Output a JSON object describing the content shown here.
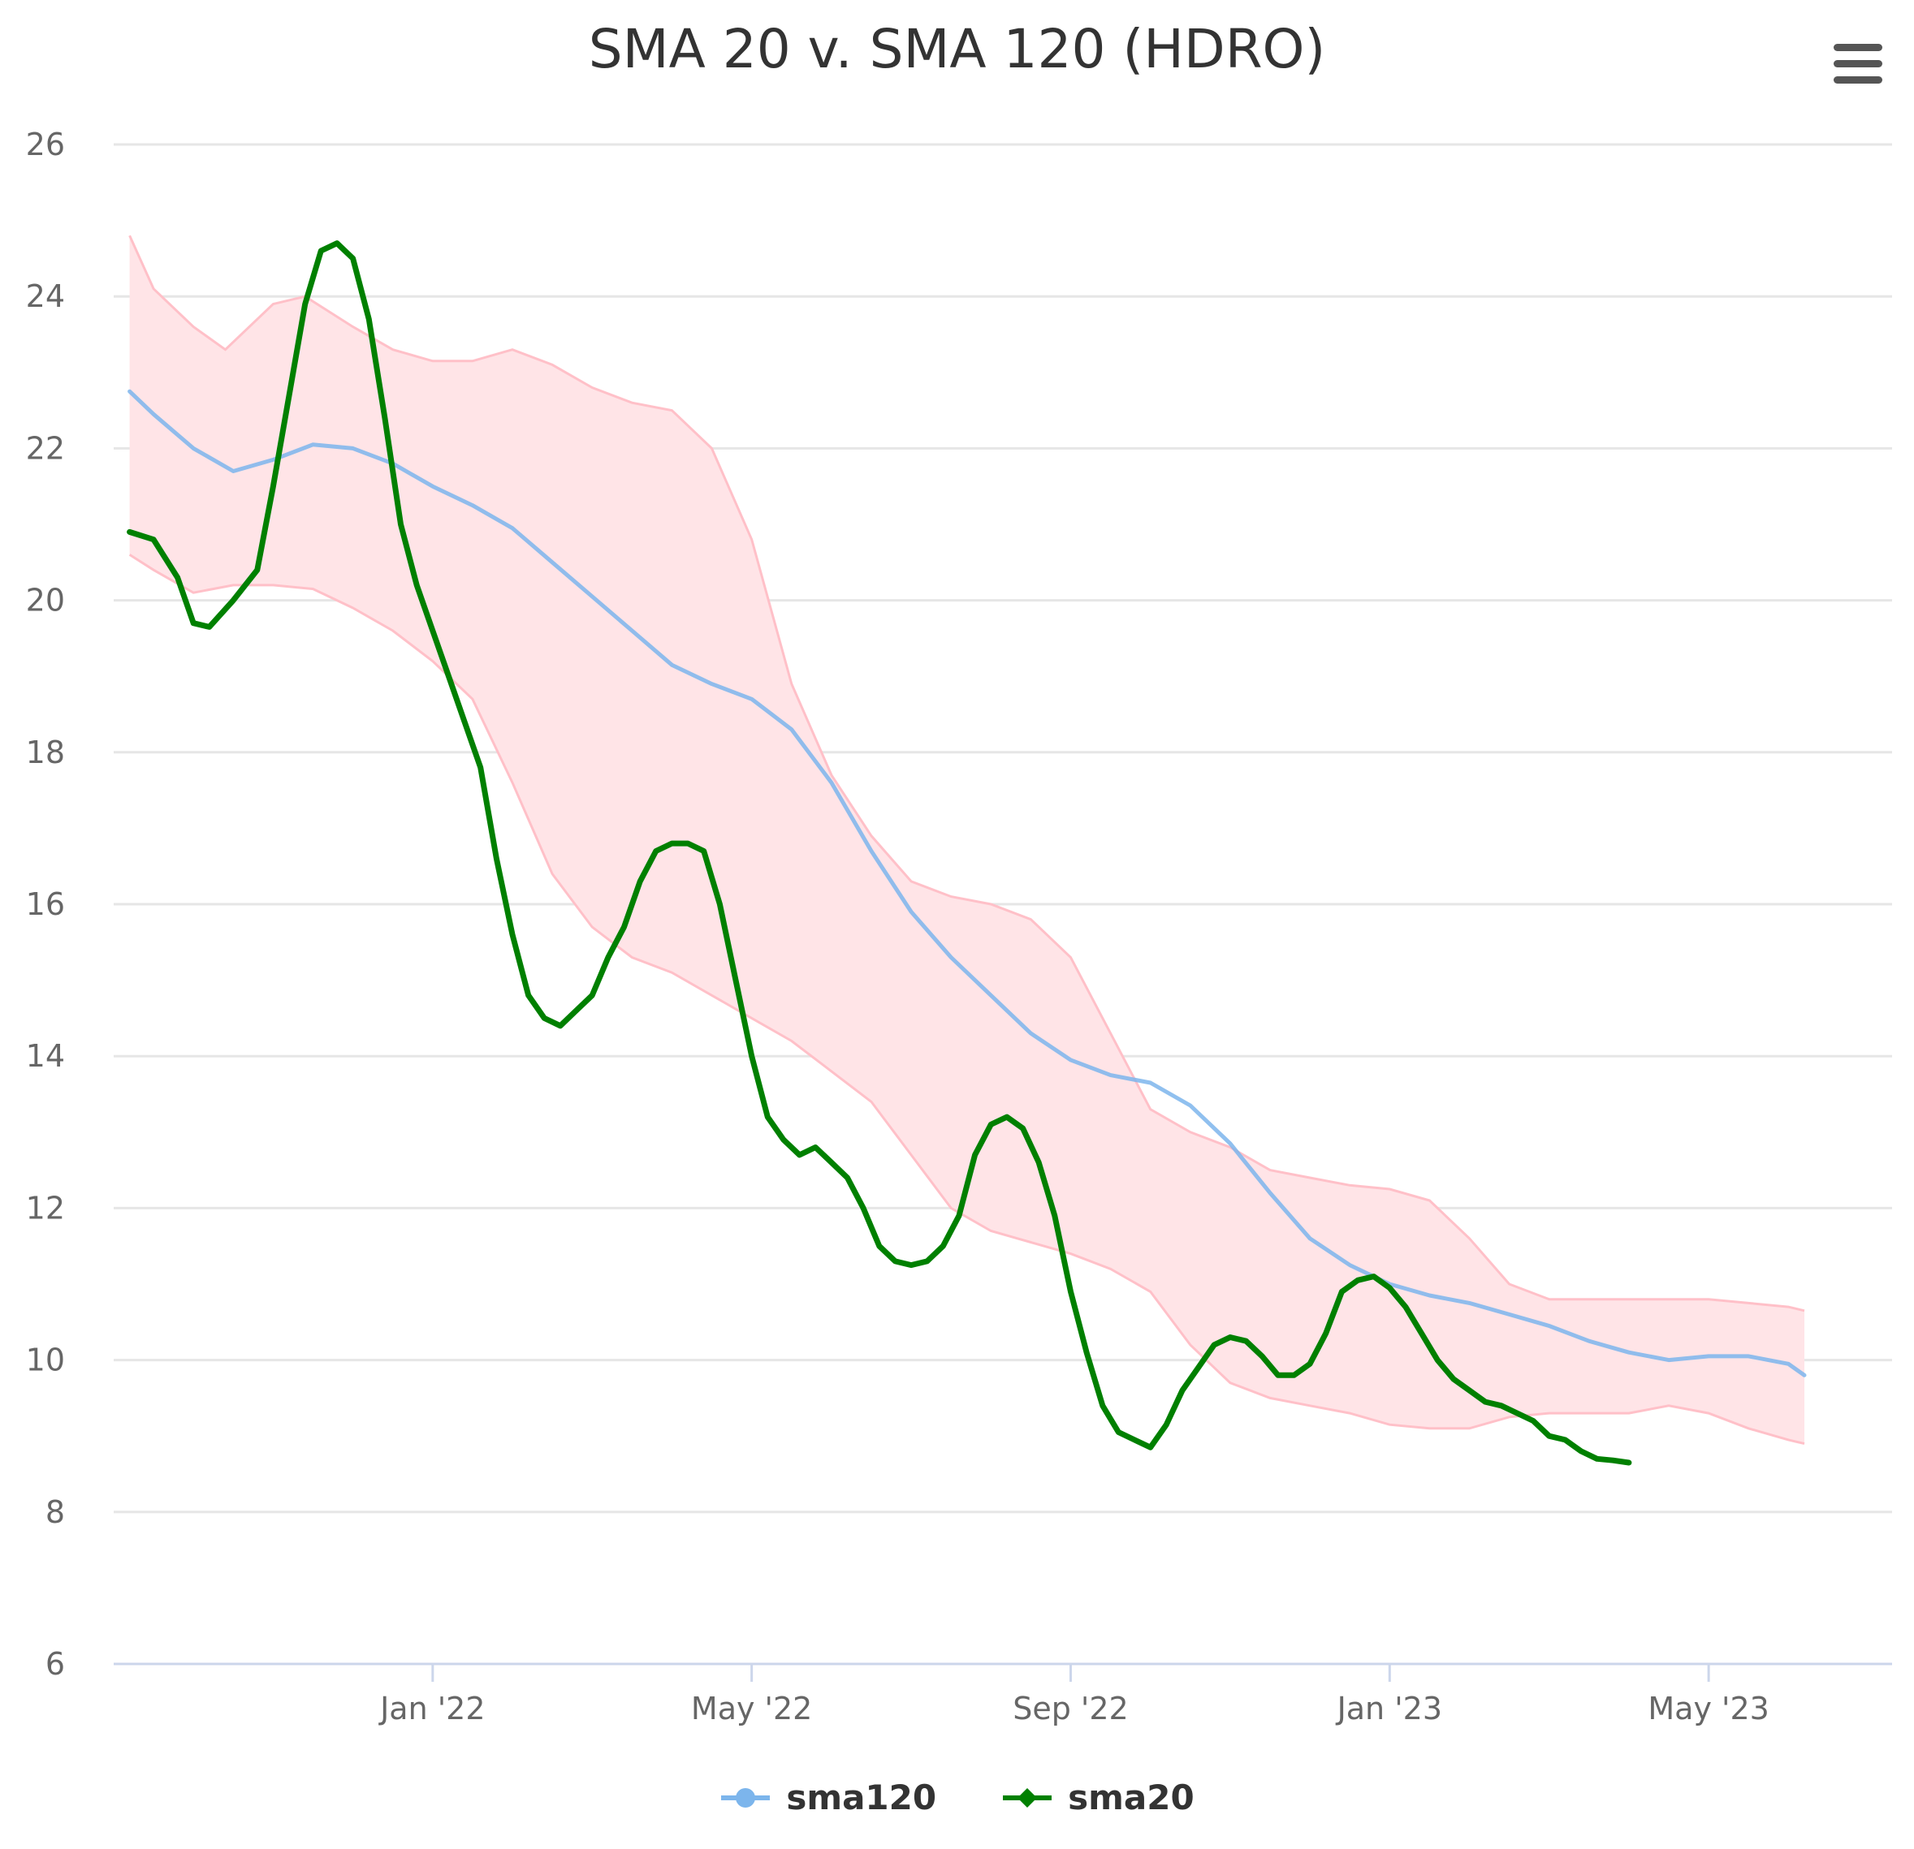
{
  "title": "SMA 20 v. SMA 120 (HDRO)",
  "menu_icon": "hamburger-menu-icon",
  "colors": {
    "sma120": "#7cb5ec",
    "sma20": "#008000",
    "band_fill": "#ffe4e7",
    "band_line": "#ffc0c8",
    "grid": "#e6e6e6",
    "axis": "#ccd6eb"
  },
  "legend": [
    {
      "key": "sma120",
      "label": "sma120",
      "color": "#7cb5ec"
    },
    {
      "key": "sma20",
      "label": "sma20",
      "color": "#008000"
    }
  ],
  "chart_data": {
    "type": "line",
    "title": "SMA 20 v. SMA 120 (HDRO)",
    "xlabel": "",
    "ylabel": "",
    "x_unit": "months since Jan 2022 (approx.)",
    "xlim": [
      -5.0,
      17.3
    ],
    "ylim": [
      6,
      26
    ],
    "yticks": [
      6,
      8,
      10,
      12,
      14,
      16,
      18,
      20,
      22,
      24,
      26
    ],
    "xticks": [
      {
        "x": -1.0,
        "label": "Jan '22"
      },
      {
        "x": 3.0,
        "label": "May '22"
      },
      {
        "x": 7.0,
        "label": "Sep '22"
      },
      {
        "x": 11.0,
        "label": "Jan '23"
      },
      {
        "x": 15.0,
        "label": "May '23"
      }
    ],
    "grid": true,
    "legend_position": "bottom-center",
    "band": {
      "name": "sma120 envelope",
      "upper": [
        [
          -4.8,
          24.8
        ],
        [
          -4.5,
          24.1
        ],
        [
          -4.0,
          23.6
        ],
        [
          -3.6,
          23.3
        ],
        [
          -3.0,
          23.9
        ],
        [
          -2.6,
          24.0
        ],
        [
          -2.0,
          23.6
        ],
        [
          -1.5,
          23.3
        ],
        [
          -1.0,
          23.15
        ],
        [
          -0.5,
          23.15
        ],
        [
          0.0,
          23.3
        ],
        [
          0.5,
          23.1
        ],
        [
          1.0,
          22.8
        ],
        [
          1.5,
          22.6
        ],
        [
          2.0,
          22.5
        ],
        [
          2.5,
          22.0
        ],
        [
          3.0,
          20.8
        ],
        [
          3.5,
          18.9
        ],
        [
          4.0,
          17.7
        ],
        [
          4.5,
          16.9
        ],
        [
          5.0,
          16.3
        ],
        [
          5.5,
          16.1
        ],
        [
          6.0,
          16.0
        ],
        [
          6.5,
          15.8
        ],
        [
          7.0,
          15.3
        ],
        [
          7.5,
          14.3
        ],
        [
          8.0,
          13.3
        ],
        [
          8.5,
          13.0
        ],
        [
          9.0,
          12.8
        ],
        [
          9.5,
          12.5
        ],
        [
          10.0,
          12.4
        ],
        [
          10.5,
          12.3
        ],
        [
          11.0,
          12.25
        ],
        [
          11.5,
          12.1
        ],
        [
          12.0,
          11.6
        ],
        [
          12.5,
          11.0
        ],
        [
          13.0,
          10.8
        ],
        [
          13.5,
          10.8
        ],
        [
          14.0,
          10.8
        ],
        [
          14.5,
          10.8
        ],
        [
          15.0,
          10.8
        ],
        [
          15.5,
          10.75
        ],
        [
          16.0,
          10.7
        ],
        [
          16.2,
          10.65
        ]
      ],
      "lower": [
        [
          -4.8,
          20.6
        ],
        [
          -4.5,
          20.4
        ],
        [
          -4.0,
          20.1
        ],
        [
          -3.5,
          20.2
        ],
        [
          -3.0,
          20.2
        ],
        [
          -2.5,
          20.15
        ],
        [
          -2.0,
          19.9
        ],
        [
          -1.5,
          19.6
        ],
        [
          -1.0,
          19.2
        ],
        [
          -0.5,
          18.7
        ],
        [
          0.0,
          17.6
        ],
        [
          0.5,
          16.4
        ],
        [
          1.0,
          15.7
        ],
        [
          1.5,
          15.3
        ],
        [
          2.0,
          15.1
        ],
        [
          2.5,
          14.8
        ],
        [
          3.0,
          14.5
        ],
        [
          3.5,
          14.2
        ],
        [
          4.0,
          13.8
        ],
        [
          4.5,
          13.4
        ],
        [
          5.0,
          12.7
        ],
        [
          5.5,
          12.0
        ],
        [
          6.0,
          11.7
        ],
        [
          6.5,
          11.55
        ],
        [
          7.0,
          11.4
        ],
        [
          7.5,
          11.2
        ],
        [
          8.0,
          10.9
        ],
        [
          8.5,
          10.2
        ],
        [
          9.0,
          9.7
        ],
        [
          9.5,
          9.5
        ],
        [
          10.0,
          9.4
        ],
        [
          10.5,
          9.3
        ],
        [
          11.0,
          9.15
        ],
        [
          11.5,
          9.1
        ],
        [
          12.0,
          9.1
        ],
        [
          12.5,
          9.25
        ],
        [
          13.0,
          9.3
        ],
        [
          13.5,
          9.3
        ],
        [
          14.0,
          9.3
        ],
        [
          14.5,
          9.4
        ],
        [
          15.0,
          9.3
        ],
        [
          15.5,
          9.1
        ],
        [
          16.0,
          8.95
        ],
        [
          16.2,
          8.9
        ]
      ]
    },
    "series": [
      {
        "name": "sma120",
        "values": [
          [
            -4.8,
            22.75
          ],
          [
            -4.5,
            22.45
          ],
          [
            -4.0,
            22.0
          ],
          [
            -3.5,
            21.7
          ],
          [
            -3.0,
            21.85
          ],
          [
            -2.5,
            22.05
          ],
          [
            -2.0,
            22.0
          ],
          [
            -1.5,
            21.8
          ],
          [
            -1.0,
            21.5
          ],
          [
            -0.5,
            21.25
          ],
          [
            0.0,
            20.95
          ],
          [
            0.5,
            20.5
          ],
          [
            1.0,
            20.05
          ],
          [
            1.5,
            19.6
          ],
          [
            2.0,
            19.15
          ],
          [
            2.5,
            18.9
          ],
          [
            3.0,
            18.7
          ],
          [
            3.5,
            18.3
          ],
          [
            4.0,
            17.6
          ],
          [
            4.5,
            16.7
          ],
          [
            5.0,
            15.9
          ],
          [
            5.5,
            15.3
          ],
          [
            6.0,
            14.8
          ],
          [
            6.5,
            14.3
          ],
          [
            7.0,
            13.95
          ],
          [
            7.5,
            13.75
          ],
          [
            8.0,
            13.65
          ],
          [
            8.5,
            13.35
          ],
          [
            9.0,
            12.85
          ],
          [
            9.5,
            12.2
          ],
          [
            10.0,
            11.6
          ],
          [
            10.5,
            11.25
          ],
          [
            11.0,
            11.0
          ],
          [
            11.5,
            10.85
          ],
          [
            12.0,
            10.75
          ],
          [
            12.5,
            10.6
          ],
          [
            13.0,
            10.45
          ],
          [
            13.5,
            10.25
          ],
          [
            14.0,
            10.1
          ],
          [
            14.5,
            10.0
          ],
          [
            15.0,
            10.05
          ],
          [
            15.5,
            10.05
          ],
          [
            16.0,
            9.95
          ],
          [
            16.2,
            9.8
          ]
        ]
      },
      {
        "name": "sma20",
        "values": [
          [
            -4.8,
            20.9
          ],
          [
            -4.5,
            20.8
          ],
          [
            -4.2,
            20.3
          ],
          [
            -4.0,
            19.7
          ],
          [
            -3.8,
            19.65
          ],
          [
            -3.5,
            20.0
          ],
          [
            -3.2,
            20.4
          ],
          [
            -3.0,
            21.5
          ],
          [
            -2.8,
            22.7
          ],
          [
            -2.6,
            23.9
          ],
          [
            -2.4,
            24.6
          ],
          [
            -2.2,
            24.7
          ],
          [
            -2.0,
            24.5
          ],
          [
            -1.8,
            23.7
          ],
          [
            -1.6,
            22.4
          ],
          [
            -1.4,
            21.0
          ],
          [
            -1.2,
            20.2
          ],
          [
            -1.0,
            19.6
          ],
          [
            -0.8,
            19.0
          ],
          [
            -0.6,
            18.4
          ],
          [
            -0.4,
            17.8
          ],
          [
            -0.2,
            16.6
          ],
          [
            0.0,
            15.6
          ],
          [
            0.2,
            14.8
          ],
          [
            0.4,
            14.5
          ],
          [
            0.6,
            14.4
          ],
          [
            0.8,
            14.6
          ],
          [
            1.0,
            14.8
          ],
          [
            1.2,
            15.3
          ],
          [
            1.4,
            15.7
          ],
          [
            1.6,
            16.3
          ],
          [
            1.8,
            16.7
          ],
          [
            2.0,
            16.8
          ],
          [
            2.2,
            16.8
          ],
          [
            2.4,
            16.7
          ],
          [
            2.6,
            16.0
          ],
          [
            2.8,
            15.0
          ],
          [
            3.0,
            14.0
          ],
          [
            3.2,
            13.2
          ],
          [
            3.4,
            12.9
          ],
          [
            3.6,
            12.7
          ],
          [
            3.8,
            12.8
          ],
          [
            4.0,
            12.6
          ],
          [
            4.2,
            12.4
          ],
          [
            4.4,
            12.0
          ],
          [
            4.6,
            11.5
          ],
          [
            4.8,
            11.3
          ],
          [
            5.0,
            11.25
          ],
          [
            5.2,
            11.3
          ],
          [
            5.4,
            11.5
          ],
          [
            5.6,
            11.9
          ],
          [
            5.8,
            12.7
          ],
          [
            6.0,
            13.1
          ],
          [
            6.2,
            13.2
          ],
          [
            6.4,
            13.05
          ],
          [
            6.6,
            12.6
          ],
          [
            6.8,
            11.9
          ],
          [
            7.0,
            10.9
          ],
          [
            7.2,
            10.1
          ],
          [
            7.4,
            9.4
          ],
          [
            7.6,
            9.05
          ],
          [
            7.8,
            8.95
          ],
          [
            8.0,
            8.85
          ],
          [
            8.2,
            9.15
          ],
          [
            8.4,
            9.6
          ],
          [
            8.6,
            9.9
          ],
          [
            8.8,
            10.2
          ],
          [
            9.0,
            10.3
          ],
          [
            9.2,
            10.25
          ],
          [
            9.4,
            10.05
          ],
          [
            9.6,
            9.8
          ],
          [
            9.8,
            9.8
          ],
          [
            10.0,
            9.95
          ],
          [
            10.2,
            10.35
          ],
          [
            10.4,
            10.9
          ],
          [
            10.6,
            11.05
          ],
          [
            10.8,
            11.1
          ],
          [
            11.0,
            10.95
          ],
          [
            11.2,
            10.7
          ],
          [
            11.4,
            10.35
          ],
          [
            11.6,
            10.0
          ],
          [
            11.8,
            9.75
          ],
          [
            12.0,
            9.6
          ],
          [
            12.2,
            9.45
          ],
          [
            12.4,
            9.4
          ],
          [
            12.6,
            9.3
          ],
          [
            12.8,
            9.2
          ],
          [
            13.0,
            9.0
          ],
          [
            13.2,
            8.95
          ],
          [
            13.4,
            8.8
          ],
          [
            13.6,
            8.7
          ],
          [
            13.8,
            8.68
          ],
          [
            14.0,
            8.65
          ]
        ]
      }
    ]
  }
}
